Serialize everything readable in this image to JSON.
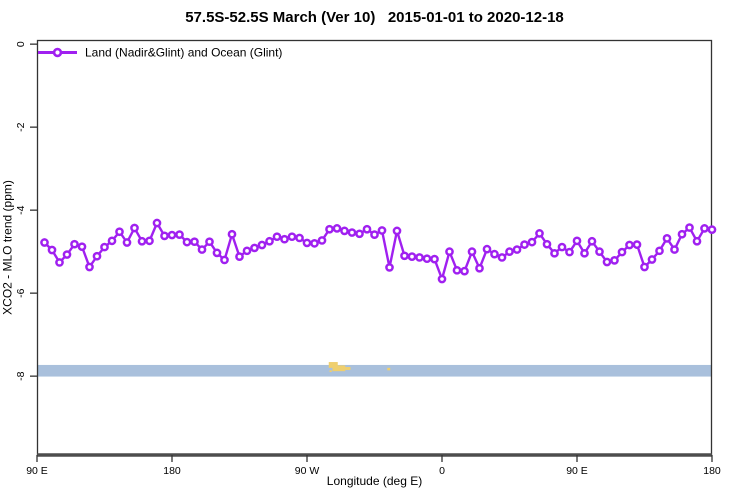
{
  "chart": {
    "title": "57.5S-52.5S March (Ver 10)   2015-01-01 to 2020-12-18"
  },
  "chart_data": {
    "type": "line",
    "title": "57.5S-52.5S March (Ver 10)   2015-01-01 to 2020-12-18",
    "xlabel": "Longitude (deg E)",
    "ylabel": "XCO2 - MLO trend (ppm)",
    "legend_position": "top-left-inside",
    "grid": false,
    "xlim": [
      90,
      540
    ],
    "ylim": [
      0.1,
      -9.9
    ],
    "x_ticks": [
      {
        "lon": 90,
        "label": "90 E"
      },
      {
        "lon": 180,
        "label": "180"
      },
      {
        "lon": 270,
        "label": "90 W"
      },
      {
        "lon": 360,
        "label": "0"
      },
      {
        "lon": 450,
        "label": "90 E"
      },
      {
        "lon": 540,
        "label": "180"
      }
    ],
    "y_ticks": [
      {
        "ppm": 0,
        "label": "0"
      },
      {
        "ppm": -2,
        "label": "-2"
      },
      {
        "ppm": -4,
        "label": "-4"
      },
      {
        "ppm": -6,
        "label": "-6"
      },
      {
        "ppm": -8,
        "label": "-8"
      }
    ],
    "series": [
      {
        "name": "Land (Nadir&Glint) and Ocean (Glint)",
        "color": "#A020F0",
        "marker": "open-circle",
        "x": [
          95,
          100,
          105,
          110,
          115,
          120,
          125,
          130,
          135,
          140,
          145,
          150,
          155,
          160,
          165,
          170,
          175,
          180,
          185,
          190,
          195,
          200,
          205,
          210,
          215,
          220,
          225,
          230,
          235,
          240,
          245,
          250,
          255,
          260,
          265,
          270,
          275,
          280,
          285,
          290,
          295,
          300,
          305,
          310,
          315,
          320,
          325,
          330,
          335,
          340,
          345,
          350,
          355,
          360,
          365,
          370,
          375,
          380,
          385,
          390,
          395,
          400,
          405,
          410,
          415,
          420,
          425,
          430,
          435,
          440,
          445,
          450,
          455,
          460,
          465,
          470,
          475,
          480,
          485,
          490,
          495,
          500,
          505,
          510,
          515,
          520,
          525,
          530,
          535,
          540
        ],
        "y": [
          -4.78,
          -4.96,
          -5.26,
          -5.07,
          -4.82,
          -4.88,
          -5.37,
          -5.11,
          -4.89,
          -4.74,
          -4.52,
          -4.78,
          -4.43,
          -4.75,
          -4.74,
          -4.31,
          -4.62,
          -4.6,
          -4.59,
          -4.77,
          -4.76,
          -4.95,
          -4.76,
          -5.03,
          -5.2,
          -4.58,
          -5.12,
          -4.98,
          -4.91,
          -4.84,
          -4.75,
          -4.64,
          -4.7,
          -4.64,
          -4.67,
          -4.79,
          -4.8,
          -4.73,
          -4.46,
          -4.44,
          -4.5,
          -4.54,
          -4.57,
          -4.46,
          -4.59,
          -4.49,
          -5.38,
          -4.5,
          -5.1,
          -5.12,
          -5.14,
          -5.17,
          -5.18,
          -5.66,
          -5.0,
          -5.45,
          -5.47,
          -5.0,
          -5.4,
          -4.94,
          -5.06,
          -5.14,
          -5.0,
          -4.95,
          -4.83,
          -4.77,
          -4.56,
          -4.82,
          -5.04,
          -4.89,
          -5.01,
          -4.74,
          -5.04,
          -4.75,
          -5.0,
          -5.25,
          -5.21,
          -5.01,
          -4.84,
          -4.83,
          -5.37,
          -5.19,
          -4.98,
          -4.68,
          -4.95,
          -4.58,
          -4.42,
          -4.75,
          -4.44,
          -4.47
        ]
      }
    ],
    "ocean_band": {
      "description": "latitude-band map strip: ocean in blue, land in yellow",
      "color": "#A9C0DC",
      "land_color": "#EFCF6E",
      "ppm_top": -7.73,
      "ppm_bottom": -8.01,
      "land_patches": [
        {
          "lon0": 284.5,
          "lon1": 290.5,
          "ppm0": -7.66,
          "ppm1": -7.8
        },
        {
          "lon0": 287.0,
          "lon1": 295.5,
          "ppm0": -7.74,
          "ppm1": -7.88
        },
        {
          "lon0": 295.0,
          "lon1": 299.0,
          "ppm0": -7.78,
          "ppm1": -7.85
        },
        {
          "lon0": 285.0,
          "lon1": 286.5,
          "ppm0": -7.86,
          "ppm1": -7.9
        },
        {
          "lon0": 323.5,
          "lon1": 325.5,
          "ppm0": -7.8,
          "ppm1": -7.86
        }
      ]
    }
  }
}
